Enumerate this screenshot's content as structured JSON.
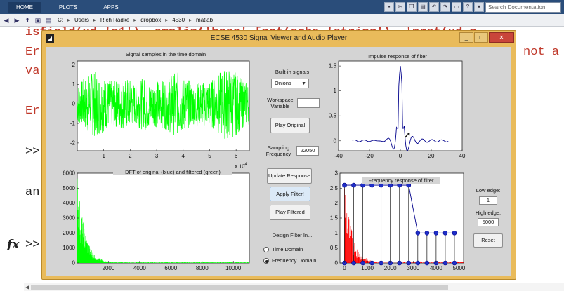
{
  "toolstrip": {
    "tabs": [
      "HOME",
      "PLOTS",
      "APPS"
    ],
    "search_placeholder": "Search Documentation"
  },
  "address": {
    "path": [
      "C:",
      "Users",
      "Rich Radke",
      "dropbox",
      "4530",
      "matlab"
    ]
  },
  "command_window": {
    "lines": [
      {
        "text": "isfield(ud,'p1'), cmplin('hose' [nct(sqhe 'string'), 'nrst(ud.p",
        "color": "red",
        "bold": true
      },
      {
        "text": "Er",
        "color": "red"
      },
      {
        "text": "va",
        "color": "red"
      },
      {
        "text": "Er",
        "color": "red"
      },
      {
        "text": ">>",
        "color": "black"
      },
      {
        "text": "an",
        "color": "black"
      }
    ],
    "right_fragment": "not a",
    "fx": "fx",
    "prompt": ">>"
  },
  "figure": {
    "title": "ECSE 4530 Signal Viewer and Audio Player",
    "plots": {
      "time_title": "Signal samples in the time domain",
      "time_yticks": [
        "2",
        "1",
        "0",
        "-1",
        "-2"
      ],
      "time_xticks": [
        "1",
        "2",
        "3",
        "4",
        "5",
        "6"
      ],
      "time_exponent": "x 10",
      "time_exponent_power": "4",
      "dft_title": "DFT of original (blue) and filtered (green)",
      "dft_yticks": [
        "6000",
        "5000",
        "4000",
        "3000",
        "2000",
        "1000",
        "0"
      ],
      "dft_xticks": [
        "2000",
        "4000",
        "6000",
        "8000",
        "10000"
      ],
      "impulse_title": "Impulse response of filter",
      "impulse_yticks": [
        "1.5",
        "1",
        "0.5",
        "0"
      ],
      "impulse_xticks": [
        "-40",
        "-20",
        "0",
        "20",
        "40"
      ],
      "freq_title": "Frequency response of filter",
      "freq_yticks": [
        "3",
        "2.5",
        "2",
        "1.5",
        "1",
        "0.5",
        "0"
      ],
      "freq_xticks": [
        "0",
        "1000",
        "2000",
        "3000",
        "4000",
        "5000"
      ]
    },
    "controls": {
      "builtin_label": "Built-in signals",
      "builtin_value": "Onions",
      "workspace_label_1": "Workspace",
      "workspace_label_2": "Variable",
      "workspace_value": "",
      "play_original": "Play Original",
      "sampling_label_1": "Sampling",
      "sampling_label_2": "Frequency",
      "sampling_value": "22050",
      "update_response": "Update Response",
      "apply_filter": "Apply Filter!",
      "play_filtered": "Play Filtered",
      "design_label": "Design Filter In...",
      "radio_time": "Time Domain",
      "radio_freq": "Frequency Domain",
      "low_edge_label": "Low edge:",
      "low_edge_value": "1",
      "high_edge_label": "High edge:",
      "high_edge_value": "5000",
      "reset": "Reset"
    }
  },
  "chart_data": [
    {
      "type": "line",
      "title": "Signal samples in the time domain",
      "xlim": [
        0,
        65000
      ],
      "ylim": [
        -2.4,
        2.2
      ],
      "x_scale_label": "x 10^4",
      "series": [
        {
          "color": "#00ff00"
        }
      ]
    },
    {
      "type": "line",
      "title": "DFT of original (blue) and filtered (green)",
      "xlim": [
        0,
        11025
      ],
      "ylim": [
        0,
        6000
      ],
      "series": [
        {
          "color": "#00ff00"
        }
      ]
    },
    {
      "type": "line",
      "title": "Impulse response of filter",
      "xlim": [
        -40,
        40
      ],
      "ylim": [
        -0.2,
        1.6
      ],
      "peak": {
        "x": 0,
        "y": 1.5
      },
      "series": [
        {
          "color": "#00008b"
        }
      ]
    },
    {
      "type": "line",
      "title": "Frequency response of filter",
      "xlim": [
        -200,
        5200
      ],
      "ylim": [
        0,
        3
      ],
      "control_points": [
        {
          "x": 0,
          "y": 2.6
        },
        {
          "x": 400,
          "y": 2.6
        },
        {
          "x": 800,
          "y": 2.6
        },
        {
          "x": 1200,
          "y": 2.6
        },
        {
          "x": 1600,
          "y": 2.6
        },
        {
          "x": 2000,
          "y": 2.6
        },
        {
          "x": 2400,
          "y": 2.6
        },
        {
          "x": 2800,
          "y": 2.6
        },
        {
          "x": 3200,
          "y": 1.0
        },
        {
          "x": 3600,
          "y": 1.0
        },
        {
          "x": 4000,
          "y": 1.0
        },
        {
          "x": 4400,
          "y": 1.0
        },
        {
          "x": 4800,
          "y": 1.0
        }
      ],
      "series": [
        {
          "color": "#00008b"
        },
        {
          "color": "#ff0000"
        }
      ]
    }
  ]
}
